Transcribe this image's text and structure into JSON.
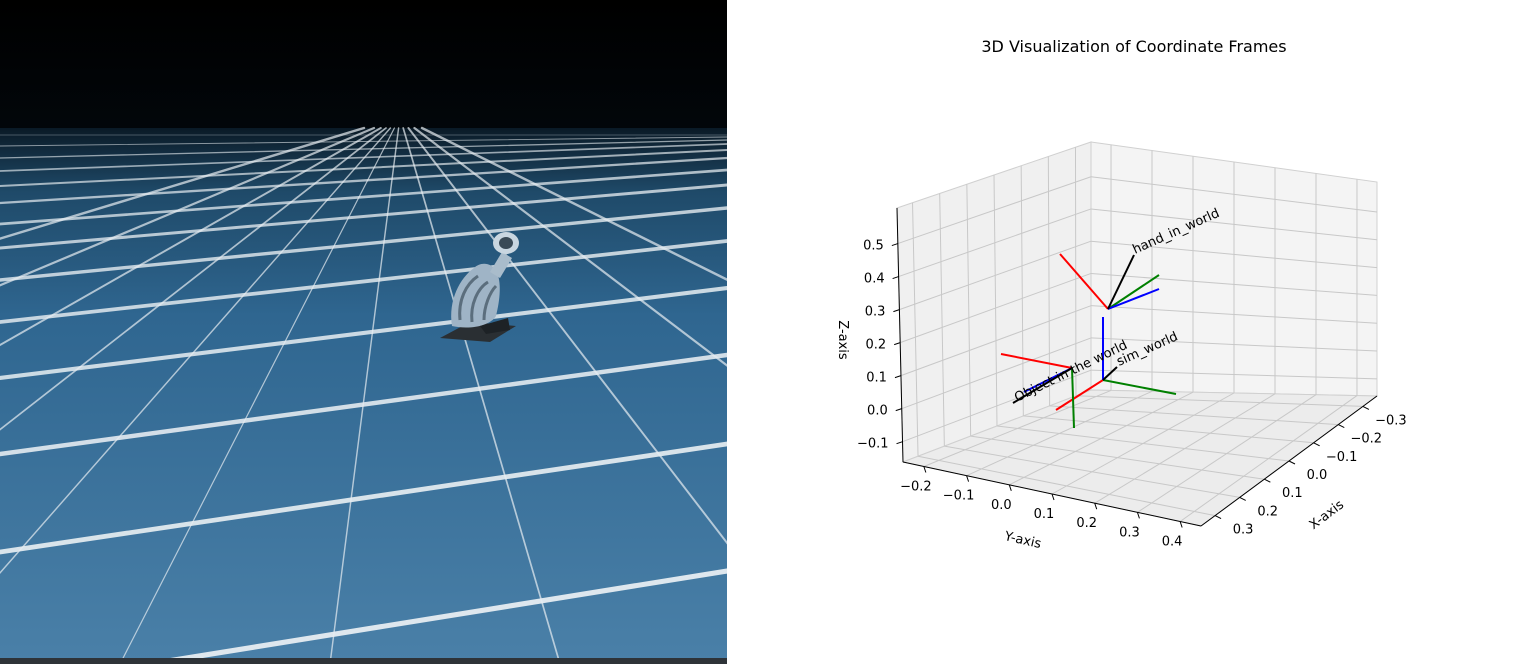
{
  "simulation": {
    "floor_color": "#3f76a0",
    "grid_line_color": "#e8eef2",
    "sky_color": "#000000",
    "object": "robot-hand"
  },
  "chart_data": {
    "type": "3d-line",
    "title": "3D Visualization of Coordinate Frames",
    "xlabel": "X-axis",
    "ylabel": "Y-axis",
    "zlabel": "Z-axis",
    "x_ticks": [
      "−0.3",
      "−0.2",
      "−0.1",
      "0.0",
      "0.1",
      "0.2",
      "0.3"
    ],
    "y_ticks": [
      "−0.2",
      "−0.1",
      "0.0",
      "0.1",
      "0.2",
      "0.3",
      "0.4"
    ],
    "z_ticks": [
      "−0.1",
      "0.0",
      "0.1",
      "0.2",
      "0.3",
      "0.4",
      "0.5"
    ],
    "grid": true,
    "axis_colors": {
      "x": "#ff0000",
      "y": "#008000",
      "z": "#0000ff",
      "label_line": "#000000"
    },
    "frames": [
      {
        "name": "hand_in_world",
        "origin": "hand"
      },
      {
        "name": "sim_world",
        "origin": "world"
      },
      {
        "name": "Object in the world",
        "origin": "object"
      }
    ]
  }
}
